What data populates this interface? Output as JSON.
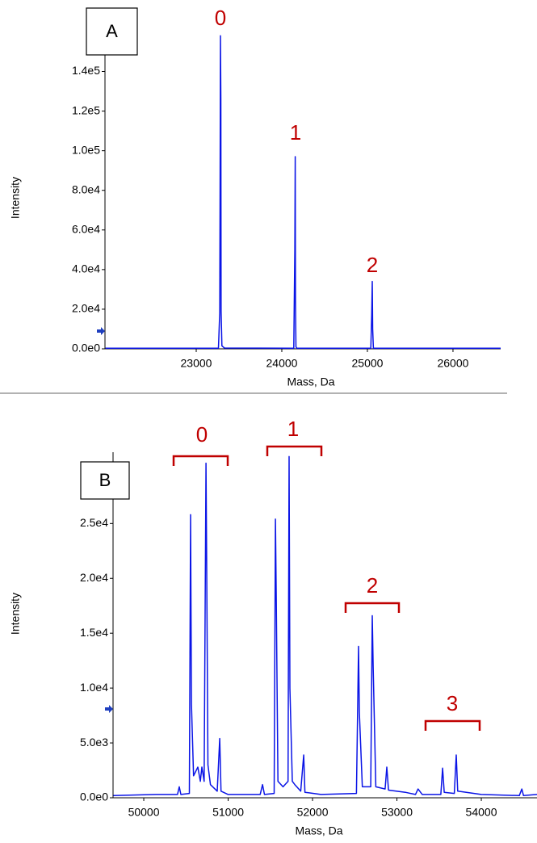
{
  "chart_data": [
    {
      "type": "line",
      "title": "A",
      "x_label": "Mass, Da",
      "y_label": "Intensity",
      "color": "#0a14e6",
      "grid": false,
      "xlim": [
        21934,
        26557
      ],
      "ylim": [
        0,
        172000
      ],
      "xticks": [
        23000,
        24000,
        25000,
        26000
      ],
      "yticks": [
        {
          "value": 0,
          "label": "0.0e0"
        },
        {
          "value": 20000,
          "label": "2.0e4"
        },
        {
          "value": 40000,
          "label": "4.0e4"
        },
        {
          "value": 60000,
          "label": "6.0e4"
        },
        {
          "value": 80000,
          "label": "8.0e4"
        },
        {
          "value": 100000,
          "label": "1.0e5"
        },
        {
          "value": 120000,
          "label": "1.2e5"
        },
        {
          "value": 140000,
          "label": "1.4e5"
        }
      ],
      "x": [
        21940,
        23260,
        23275,
        23278,
        23283,
        23288,
        23291,
        23300,
        23330,
        24140,
        24152,
        24157,
        24160,
        24165,
        24175,
        25040,
        25050,
        25057,
        25062,
        25070,
        26557
      ],
      "values": [
        300,
        300,
        18000,
        72000,
        158000,
        126000,
        19000,
        1500,
        400,
        300,
        50000,
        97000,
        24000,
        1000,
        300,
        300,
        17000,
        34000,
        10000,
        300,
        300
      ],
      "annotations": [
        "0",
        "1",
        "2"
      ]
    },
    {
      "type": "line",
      "title": "B",
      "x_label": "Mass, Da",
      "y_label": "Intensity",
      "color": "#0a14e6",
      "grid": false,
      "xlim": [
        49636,
        54660
      ],
      "ylim": [
        0,
        31500
      ],
      "xticks": [
        50000,
        51000,
        52000,
        53000,
        54000
      ],
      "yticks": [
        {
          "value": 0,
          "label": "0.0e0"
        },
        {
          "value": 5000,
          "label": "5.0e3"
        },
        {
          "value": 10000,
          "label": "1.0e4"
        },
        {
          "value": 15000,
          "label": "1.5e4"
        },
        {
          "value": 20000,
          "label": "2.0e4"
        },
        {
          "value": 25000,
          "label": "2.5e4"
        },
        {
          "value": 30000,
          "label": "3.0e4"
        }
      ],
      "x": [
        49640,
        50150,
        50400,
        50421,
        50440,
        50540,
        50555,
        50565,
        50590,
        50641,
        50670,
        50689,
        50715,
        50737,
        50745,
        50760,
        50790,
        50870,
        50900,
        50915,
        51000,
        51380,
        51407,
        51430,
        51545,
        51560,
        51570,
        51590,
        51650,
        51710,
        51722,
        51732,
        51760,
        51790,
        51860,
        51895,
        51910,
        52100,
        52520,
        52545,
        52555,
        52590,
        52690,
        52708,
        52718,
        52750,
        52860,
        52880,
        52900,
        53100,
        53220,
        53250,
        53300,
        53520,
        53541,
        53560,
        53680,
        53703,
        53720,
        54000,
        54450,
        54480,
        54500,
        54660
      ],
      "values": [
        200,
        300,
        300,
        1000,
        300,
        400,
        25800,
        8500,
        2000,
        2800,
        1500,
        2800,
        1500,
        30500,
        21800,
        3000,
        1200,
        600,
        5400,
        600,
        300,
        300,
        1200,
        300,
        400,
        25400,
        18300,
        1500,
        1000,
        1500,
        31100,
        10000,
        1500,
        1200,
        600,
        3900,
        500,
        300,
        400,
        13800,
        7800,
        1000,
        1000,
        16600,
        12000,
        1000,
        800,
        2800,
        700,
        500,
        300,
        800,
        300,
        300,
        2700,
        500,
        400,
        3900,
        600,
        300,
        200,
        800,
        200,
        300
      ],
      "annotations": [
        "0",
        "1",
        "2",
        "3"
      ]
    }
  ]
}
